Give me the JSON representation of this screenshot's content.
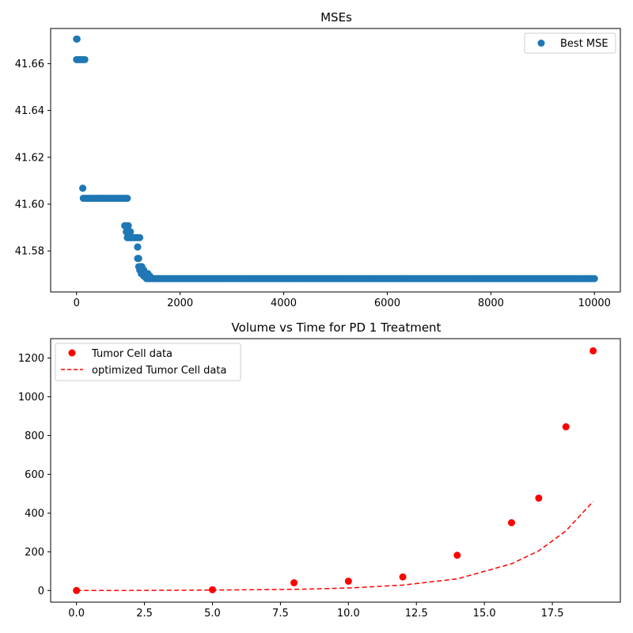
{
  "chart_data": [
    {
      "type": "scatter",
      "title": "MSEs",
      "xlabel": "",
      "ylabel": "",
      "xlim": [
        -500,
        10500
      ],
      "ylim": [
        41.5625,
        41.675
      ],
      "xticks": [
        0,
        2000,
        4000,
        6000,
        8000,
        10000
      ],
      "xtick_labels": [
        "0",
        "2000",
        "4000",
        "6000",
        "8000",
        "10000"
      ],
      "yticks": [
        41.58,
        41.6,
        41.62,
        41.64,
        41.66
      ],
      "ytick_labels": [
        "41.58",
        "41.60",
        "41.62",
        "41.64",
        "41.66"
      ],
      "grid": false,
      "legend_position": "top-right",
      "series": [
        {
          "name": "Best MSE",
          "color": "#1f77b4",
          "marker": "circle",
          "segments": [
            {
              "x_start": 0,
              "x_end": 10,
              "y": 41.6705
            },
            {
              "x_start": 0,
              "x_end": 160,
              "y": 41.6617
            },
            {
              "x_start": 120,
              "x_end": 120,
              "y": 41.6068
            },
            {
              "x_start": 130,
              "x_end": 980,
              "y": 41.6025
            },
            {
              "x_start": 930,
              "x_end": 1000,
              "y": 41.5908
            },
            {
              "x_start": 960,
              "x_end": 1040,
              "y": 41.5882
            },
            {
              "x_start": 980,
              "x_end": 1220,
              "y": 41.5857
            },
            {
              "x_start": 1180,
              "x_end": 1180,
              "y": 41.5817
            },
            {
              "x_start": 1180,
              "x_end": 1200,
              "y": 41.5768
            },
            {
              "x_start": 1200,
              "x_end": 1260,
              "y": 41.5733
            },
            {
              "x_start": 1220,
              "x_end": 1300,
              "y": 41.5718
            },
            {
              "x_start": 1250,
              "x_end": 1380,
              "y": 41.5703
            },
            {
              "x_start": 1300,
              "x_end": 1420,
              "y": 41.5692
            },
            {
              "x_start": 1350,
              "x_end": 10000,
              "y": 41.5682
            }
          ]
        }
      ]
    },
    {
      "type": "scatter",
      "title": "Volume vs Time for PD 1 Treatment",
      "xlabel": "",
      "ylabel": "",
      "xlim": [
        -0.95,
        20
      ],
      "ylim": [
        -60,
        1300
      ],
      "xticks": [
        0,
        2.5,
        5,
        7.5,
        10,
        12.5,
        15,
        17.5
      ],
      "xtick_labels": [
        "0.0",
        "2.5",
        "5.0",
        "7.5",
        "10.0",
        "12.5",
        "15.0",
        "17.5"
      ],
      "yticks": [
        0,
        200,
        400,
        600,
        800,
        1000,
        1200
      ],
      "ytick_labels": [
        "0",
        "200",
        "400",
        "600",
        "800",
        "1000",
        "1200"
      ],
      "grid": false,
      "legend_position": "top-left",
      "series": [
        {
          "name": "Tumor Cell data",
          "color": "#ff0000",
          "marker": "circle",
          "x": [
            0,
            5,
            8,
            10,
            12,
            14,
            16,
            17,
            18,
            19
          ],
          "y": [
            0,
            4,
            40,
            48,
            70,
            182,
            350,
            477,
            845,
            1237
          ]
        },
        {
          "name": "optimized Tumor Cell data",
          "color": "#ff0000",
          "line_style": "dashed",
          "x": [
            0,
            2,
            4,
            6,
            8,
            10,
            12,
            14,
            16,
            17,
            18,
            19
          ],
          "y": [
            0,
            0.5,
            1.5,
            3.5,
            6,
            13,
            28,
            60,
            138,
            205,
            308,
            460
          ]
        }
      ]
    }
  ]
}
